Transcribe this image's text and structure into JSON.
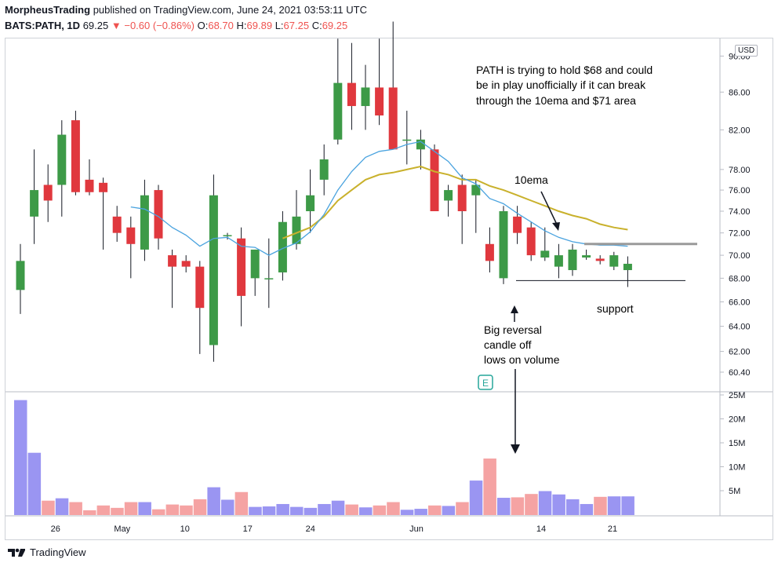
{
  "header": {
    "author": "MorpheusTrading",
    "published_text": "published on TradingView.com, June 24, 2021 03:53:11 UTC",
    "symbol": "BATS:PATH, 1D",
    "last": "69.25",
    "change": "−0.60 (−0.86%)",
    "o_label": "O:",
    "o_value": "68.70",
    "h_label": "H:",
    "h_value": "69.89",
    "l_label": "L:",
    "l_value": "67.25",
    "c_label": "C:",
    "c_value": "69.25"
  },
  "currency_badge": "USD",
  "footer": {
    "brand": "TradingView"
  },
  "colors": {
    "up": "#3d9a47",
    "down": "#e0383e",
    "ema10": "#4aa3df",
    "ema20": "#c9b12c",
    "vol_up": "#9a95f2",
    "vol_down": "#f5a3a3"
  },
  "chart_data": {
    "type": "candlestick",
    "price_axis_ticks": [
      "60.40",
      "62.00",
      "64.00",
      "66.00",
      "68.00",
      "70.00",
      "72.00",
      "74.00",
      "76.00",
      "78.00",
      "82.00",
      "86.00",
      "90.00"
    ],
    "volume_axis_ticks": [
      "5M",
      "10M",
      "15M",
      "20M",
      "25M"
    ],
    "x_axis_labels": [
      "26",
      "May",
      "10",
      "17",
      "24",
      "Jun",
      "14",
      "21"
    ],
    "price_scale": "log",
    "candles": [
      [
        67.0,
        71.0,
        65.0,
        69.5
      ],
      [
        73.5,
        80.0,
        71.0,
        76.0
      ],
      [
        76.5,
        78.5,
        73.0,
        75.0
      ],
      [
        76.5,
        83.0,
        73.5,
        81.5
      ],
      [
        83.0,
        84.0,
        75.5,
        75.8
      ],
      [
        77.0,
        79.0,
        75.5,
        75.8
      ],
      [
        76.7,
        77.2,
        70.5,
        75.8
      ],
      [
        73.5,
        74.5,
        71.2,
        72.0
      ],
      [
        72.5,
        73.5,
        68.0,
        71.0
      ],
      [
        70.5,
        77.0,
        69.5,
        75.5
      ],
      [
        76.0,
        76.5,
        70.5,
        71.5
      ],
      [
        70.0,
        70.5,
        65.5,
        69.0
      ],
      [
        69.5,
        70.0,
        68.5,
        69.0
      ],
      [
        69.0,
        69.5,
        61.8,
        65.5
      ],
      [
        62.5,
        77.5,
        61.2,
        75.5
      ],
      [
        71.8,
        72.0,
        71.4,
        71.8
      ],
      [
        71.5,
        72.5,
        64.0,
        66.5
      ],
      [
        68.0,
        70.5,
        66.5,
        70.5
      ],
      [
        68.0,
        71.5,
        65.5,
        68.0
      ],
      [
        68.5,
        74.0,
        67.8,
        73.0
      ],
      [
        71.0,
        76.0,
        70.5,
        73.5
      ],
      [
        74.0,
        78.0,
        72.0,
        75.5
      ],
      [
        77.0,
        80.5,
        75.5,
        79.0
      ],
      [
        81.0,
        92.0,
        80.5,
        87.0
      ],
      [
        87.0,
        91.5,
        82.0,
        84.5
      ],
      [
        84.5,
        89.0,
        82.0,
        86.5
      ],
      [
        86.5,
        92.0,
        82.5,
        83.5
      ],
      [
        86.5,
        94.0,
        80.0,
        80.0
      ],
      [
        81.0,
        84.0,
        78.5,
        81.0
      ],
      [
        80.0,
        82.0,
        78.0,
        81.0
      ],
      [
        80.0,
        80.5,
        74.0,
        74.0
      ],
      [
        75.0,
        76.5,
        73.5,
        76.0
      ],
      [
        76.5,
        77.5,
        71.0,
        74.0
      ],
      [
        75.5,
        77.0,
        72.0,
        76.5
      ],
      [
        71.0,
        72.5,
        68.5,
        69.5
      ],
      [
        68.0,
        74.5,
        67.5,
        74.0
      ],
      [
        73.5,
        74.5,
        71.0,
        72.0
      ],
      [
        72.5,
        73.0,
        69.5,
        70.0
      ],
      [
        69.8,
        72.5,
        69.5,
        70.4
      ],
      [
        69.0,
        71.0,
        68.0,
        70.0
      ],
      [
        68.7,
        71.0,
        68.2,
        70.5
      ],
      [
        69.8,
        70.5,
        69.6,
        70.0
      ],
      [
        69.7,
        70.0,
        69.2,
        69.5
      ],
      [
        69.0,
        70.3,
        68.7,
        70.0
      ],
      [
        68.7,
        69.9,
        67.25,
        69.25
      ]
    ],
    "volume_m": [
      24,
      13,
      3,
      3.5,
      2.7,
      1,
      2,
      1.5,
      2.7,
      2.7,
      1.2,
      2.2,
      2,
      3.3,
      5.8,
      3.2,
      4.8,
      1.7,
      1.8,
      2.3,
      1.7,
      1.5,
      2.3,
      3,
      2.2,
      1.6,
      2,
      2.7,
      1.1,
      1.3,
      2,
      1.9,
      2.7,
      7.2,
      11.8,
      3.6,
      3.7,
      4.4,
      5,
      4.3,
      3.3,
      2.3,
      3.8,
      3.9,
      3.9
    ],
    "ema10": [
      null,
      null,
      null,
      null,
      null,
      null,
      null,
      null,
      74.4,
      74.2,
      73.5,
      72.5,
      71.8,
      70.8,
      71.5,
      71.6,
      70.8,
      70.7,
      70.0,
      70.6,
      71.1,
      72.1,
      73.7,
      76.0,
      77.8,
      79.2,
      79.8,
      80.0,
      80.5,
      80.8,
      79.8,
      78.8,
      77.2,
      76.6,
      75.2,
      74.7,
      73.8,
      73.0,
      72.2,
      71.6,
      71.2,
      71.0,
      70.9,
      70.9,
      70.8
    ],
    "ema20": [
      null,
      null,
      null,
      null,
      null,
      null,
      null,
      null,
      null,
      null,
      null,
      null,
      null,
      null,
      null,
      null,
      null,
      null,
      null,
      71.5,
      72.0,
      72.5,
      73.5,
      75.0,
      76.0,
      77.0,
      77.5,
      77.7,
      78.0,
      78.3,
      77.8,
      77.5,
      77.0,
      77.0,
      76.4,
      76.0,
      75.5,
      75.0,
      74.5,
      74.0,
      73.6,
      73.3,
      72.8,
      72.5,
      72.3
    ],
    "resistance_level": 71.0,
    "support_level": 67.8,
    "annotations": {
      "note_line1": "PATH is trying to hold $68 and could",
      "note_line2": "be in play unofficially if it can break",
      "note_line3": "through the 10ema and $71 area",
      "ema_label": "10ema",
      "support_label": "support",
      "reversal_line1": "Big reversal",
      "reversal_line2": "candle off",
      "reversal_line3": "lows on volume",
      "earnings_marker": "E"
    }
  }
}
